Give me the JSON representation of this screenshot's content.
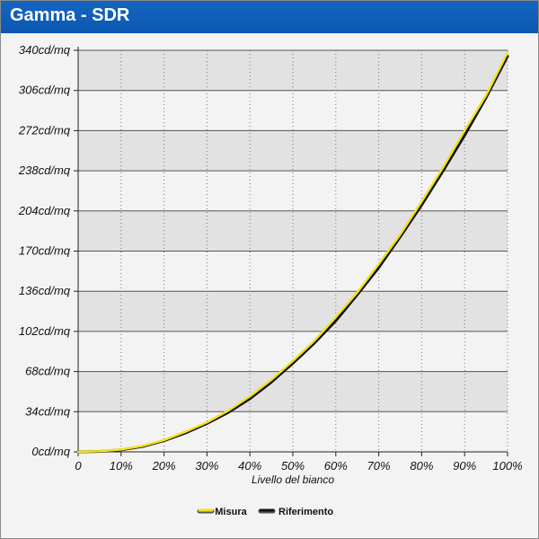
{
  "window": {
    "title": "Gamma - SDR"
  },
  "colors": {
    "title_bar": "#0b58b1",
    "title_text": "#ffffff",
    "band_light": "#f3f3f3",
    "band_dark": "#e2e2e2",
    "measured": "#f2e21c",
    "reference": "#111111",
    "gridline": "#555555"
  },
  "chart_data": {
    "type": "line",
    "title": "",
    "xlabel": "Livello del bianco",
    "ylabel": "",
    "x_ticks": [
      "0",
      "10%",
      "20%",
      "30%",
      "40%",
      "50%",
      "60%",
      "70%",
      "80%",
      "90%",
      "100%"
    ],
    "y_ticks": [
      "0cd/mq",
      "34cd/mq",
      "68cd/mq",
      "102cd/mq",
      "136cd/mq",
      "170cd/mq",
      "204cd/mq",
      "238cd/mq",
      "272cd/mq",
      "306cd/mq",
      "340cd/mq"
    ],
    "xlim": [
      0,
      100
    ],
    "ylim": [
      0,
      340
    ],
    "grid": true,
    "legend_position": "bottom",
    "x": [
      0,
      5,
      10,
      15,
      20,
      25,
      30,
      35,
      40,
      45,
      50,
      55,
      60,
      65,
      70,
      75,
      80,
      85,
      90,
      95,
      100
    ],
    "series": [
      {
        "name": "Misura",
        "color": "#f2e21c",
        "values": [
          0,
          0.5,
          2,
          5,
          10,
          17,
          25,
          35,
          47,
          61,
          77,
          94,
          114,
          135,
          159,
          184,
          212,
          241,
          272,
          302,
          338
        ]
      },
      {
        "name": "Riferimento",
        "color": "#111111",
        "values": [
          0,
          0.4,
          1.7,
          4.6,
          9.4,
          16,
          24,
          33.5,
          45,
          59,
          75,
          92,
          111,
          133,
          156,
          182,
          209,
          238,
          268,
          300,
          335
        ]
      }
    ]
  }
}
